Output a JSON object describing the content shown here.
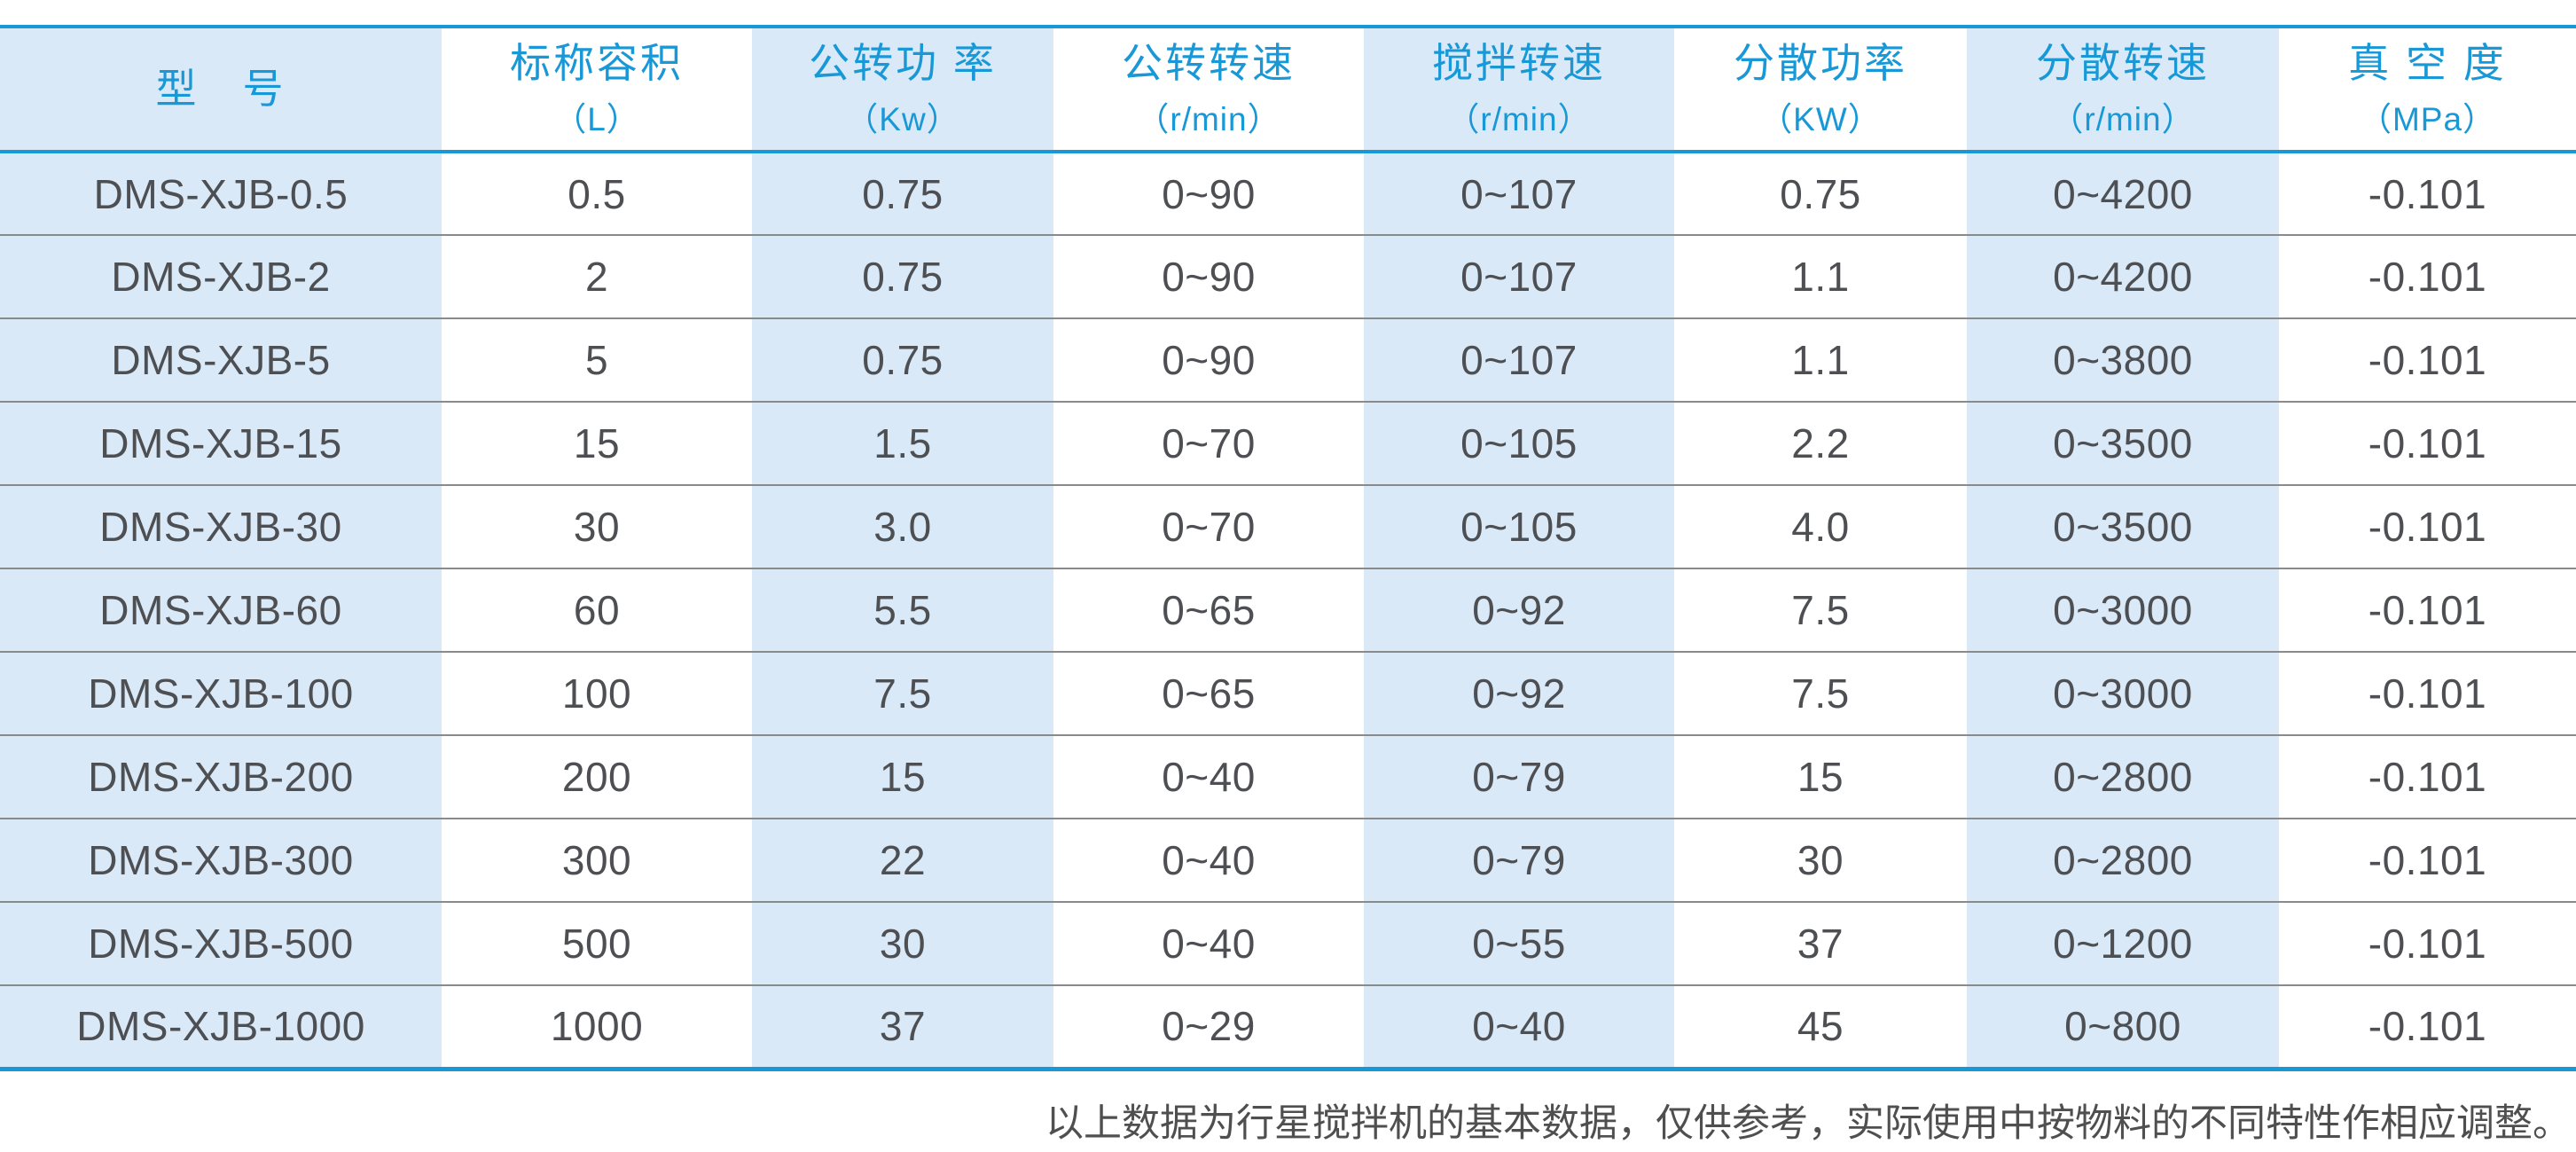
{
  "colors": {
    "accent_blue": "#1898d6",
    "light_blue_bg": "#d9e9f7",
    "cell_text": "#4d4f53",
    "row_divider": "#8a8a8a",
    "footnote_gray": "#4f4f4f"
  },
  "table": {
    "columns": [
      {
        "label": "型　号",
        "unit": ""
      },
      {
        "label": "标称容积",
        "unit": "（L）"
      },
      {
        "label": "公转功 率",
        "unit": "（Kw）"
      },
      {
        "label": "公转转速",
        "unit": "（r/min）"
      },
      {
        "label": "搅拌转速",
        "unit": "（r/min）"
      },
      {
        "label": "分散功率",
        "unit": "（KW）"
      },
      {
        "label": "分散转速",
        "unit": "（r/min）"
      },
      {
        "label": "真 空 度",
        "unit": "（MPa）"
      }
    ],
    "rows": [
      [
        "DMS-XJB-0.5",
        "0.5",
        "0.75",
        "0~90",
        "0~107",
        "0.75",
        "0~4200",
        "-0.101"
      ],
      [
        "DMS-XJB-2",
        "2",
        "0.75",
        "0~90",
        "0~107",
        "1.1",
        "0~4200",
        "-0.101"
      ],
      [
        "DMS-XJB-5",
        "5",
        "0.75",
        "0~90",
        "0~107",
        "1.1",
        "0~3800",
        "-0.101"
      ],
      [
        "DMS-XJB-15",
        "15",
        "1.5",
        "0~70",
        "0~105",
        "2.2",
        "0~3500",
        "-0.101"
      ],
      [
        "DMS-XJB-30",
        "30",
        "3.0",
        "0~70",
        "0~105",
        "4.0",
        "0~3500",
        "-0.101"
      ],
      [
        "DMS-XJB-60",
        "60",
        "5.5",
        "0~65",
        "0~92",
        "7.5",
        "0~3000",
        "-0.101"
      ],
      [
        "DMS-XJB-100",
        "100",
        "7.5",
        "0~65",
        "0~92",
        "7.5",
        "0~3000",
        "-0.101"
      ],
      [
        "DMS-XJB-200",
        "200",
        "15",
        "0~40",
        "0~79",
        "15",
        "0~2800",
        "-0.101"
      ],
      [
        "DMS-XJB-300",
        "300",
        "22",
        "0~40",
        "0~79",
        "30",
        "0~2800",
        "-0.101"
      ],
      [
        "DMS-XJB-500",
        "500",
        "30",
        "0~40",
        "0~55",
        "37",
        "0~1200",
        "-0.101"
      ],
      [
        "DMS-XJB-1000",
        "1000",
        "37",
        "0~29",
        "0~40",
        "45",
        "0~800",
        "-0.101"
      ]
    ]
  },
  "footnote": "以上数据为行星搅拌机的基本数据，仅供参考，实际使用中按物料的不同特性作相应调整。"
}
